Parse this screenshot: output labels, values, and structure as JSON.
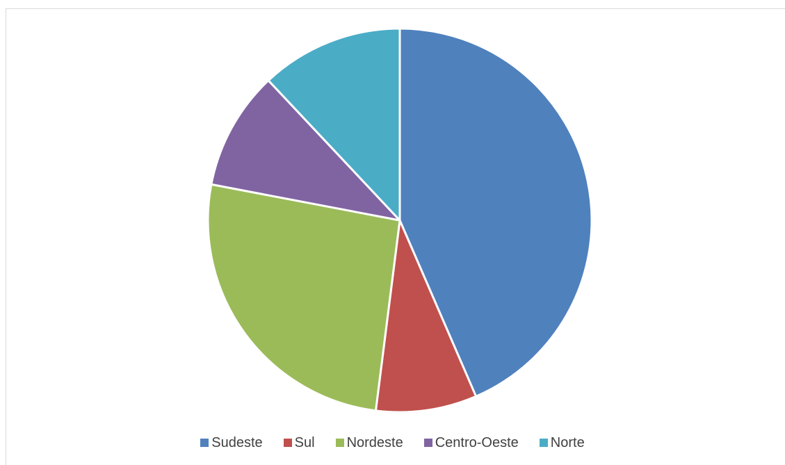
{
  "chart_data": {
    "type": "pie",
    "title": "",
    "categories": [
      "Sudeste",
      "Sul",
      "Nordeste",
      "Centro-Oeste",
      "Norte"
    ],
    "values": [
      43.5,
      8.5,
      26.0,
      10.0,
      12.0
    ],
    "colors": [
      "#4f81bd",
      "#c0504d",
      "#9bbb59",
      "#8064a2",
      "#4bacc6"
    ],
    "start_angle_deg": 0,
    "direction": "clockwise",
    "legend_position": "bottom"
  }
}
